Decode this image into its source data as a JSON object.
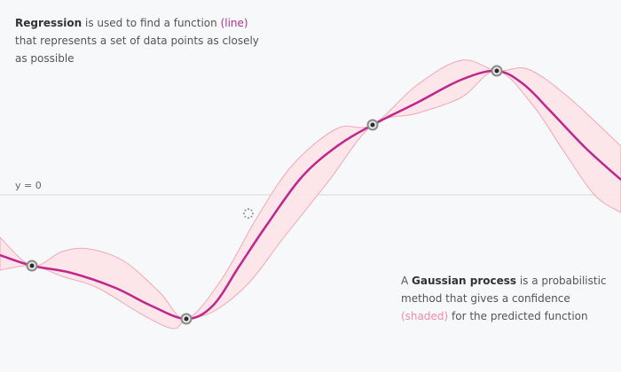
{
  "captions": {
    "regression": {
      "bold": "Regression",
      "text1": " is used to find a function ",
      "accent": "(line)",
      "text2": " that represents a set of data points as closely as possible"
    },
    "gaussian": {
      "pre": "A ",
      "bold": "Gaussian process",
      "text1": " is a probabilistic method that gives a confidence ",
      "accent": "(shaded)",
      "text2": " for the predicted function"
    }
  },
  "zero_line_label": "y = 0",
  "colors": {
    "background": "#f7f8fa",
    "line": "#c0268b",
    "band_fill": "#fde3e6",
    "band_stroke": "#f3a7b5",
    "point_ring": "#8a8a8a",
    "point_core": "#2b2b2b",
    "zero_line": "#d7d7d7"
  },
  "loading_icon": "spinner-icon"
}
